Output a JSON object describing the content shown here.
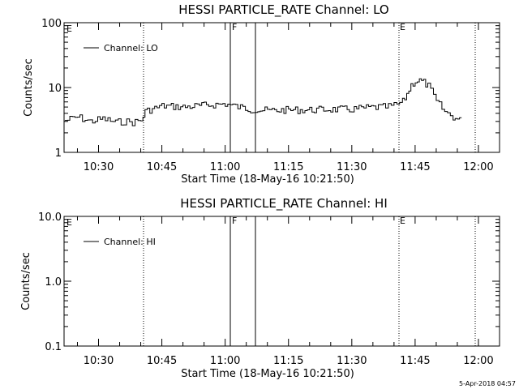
{
  "chart_data": [
    {
      "type": "line",
      "title": "HESSI PARTICLE_RATE Channel: LO",
      "xlabel": "Start Time (18-May-16 10:21:50)",
      "ylabel": "Counts/sec",
      "x_range": [
        "10:21:50",
        "12:05:00"
      ],
      "x_ticks": [
        "10:30",
        "10:45",
        "11:00",
        "11:15",
        "11:30",
        "11:45",
        "12:00"
      ],
      "y_scale": "log",
      "y_range": [
        1,
        100
      ],
      "y_ticks": [
        "1",
        "10",
        "100"
      ],
      "legend": "top-left",
      "series": [
        {
          "name": "Channel: LO",
          "x": [
            "10:22",
            "10:25",
            "10:28",
            "10:31",
            "10:34",
            "10:36",
            "10:38",
            "10:40",
            "10:41",
            "10:45",
            "10:50",
            "10:55",
            "11:00",
            "11:03",
            "11:06",
            "11:10",
            "11:15",
            "11:20",
            "11:25",
            "11:30",
            "11:34",
            "11:38",
            "11:40",
            "11:42",
            "11:43",
            "11:44",
            "11:45",
            "11:46",
            "11:47",
            "11:48",
            "11:50",
            "11:52",
            "11:54",
            "11:55",
            "11:56"
          ],
          "y": [
            3.1,
            3.5,
            3.0,
            3.3,
            2.9,
            3.0,
            2.9,
            3.1,
            4.3,
            5.2,
            5.0,
            5.3,
            5.6,
            5.0,
            4.6,
            4.4,
            4.5,
            4.5,
            4.6,
            4.6,
            4.9,
            5.0,
            5.3,
            6.0,
            8.0,
            11.0,
            12.5,
            12.8,
            12.0,
            10.5,
            6.0,
            4.2,
            3.5,
            3.2,
            3.0
          ]
        }
      ]
    },
    {
      "type": "line",
      "title": "HESSI PARTICLE_RATE Channel: HI",
      "xlabel": "Start Time (18-May-16 10:21:50)",
      "ylabel": "Counts/sec",
      "x_range": [
        "10:21:50",
        "12:05:00"
      ],
      "x_ticks": [
        "10:30",
        "10:45",
        "11:00",
        "11:15",
        "11:30",
        "11:45",
        "12:00"
      ],
      "y_scale": "log",
      "y_range": [
        0.1,
        10
      ],
      "y_ticks": [
        "0.1",
        "1.0",
        "10.0"
      ],
      "legend": "top-left",
      "series": [
        {
          "name": "Channel: HI",
          "x": [],
          "y": []
        }
      ]
    }
  ],
  "markers": {
    "eclipse_dotted": [
      "10:40",
      "11:39",
      "11:57"
    ],
    "flag_solid": [
      "11:00",
      "11:06"
    ],
    "labels": {
      "e1": "E",
      "f": "F",
      "e2": "E"
    }
  },
  "footer": {
    "timestamp": "5-Apr-2018 04:57"
  }
}
